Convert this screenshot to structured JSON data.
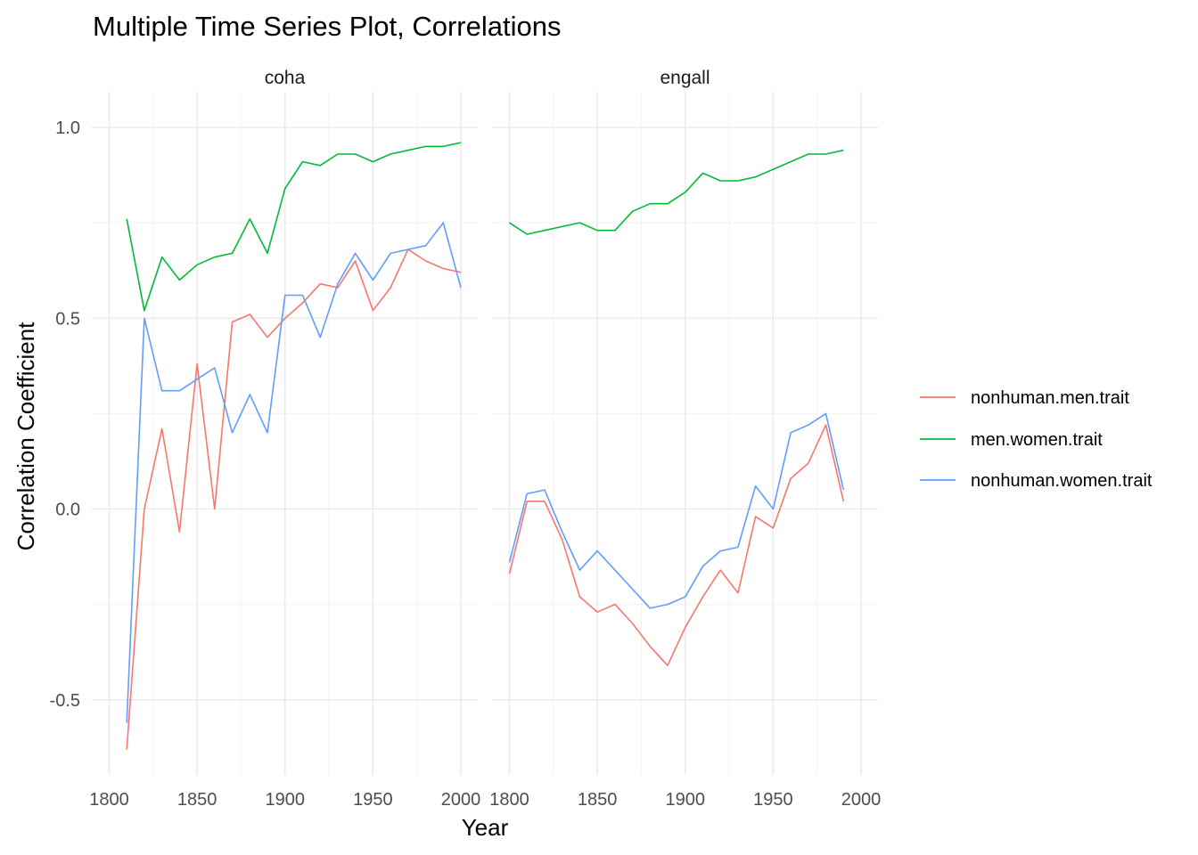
{
  "chart_data": {
    "type": "line",
    "title": "Multiple Time Series Plot, Correlations",
    "xlabel": "Year",
    "ylabel": "Correlation Coefficient",
    "xlim": [
      1790,
      2000
    ],
    "ylim": [
      -0.7,
      1.05
    ],
    "x_ticks": [
      "1800",
      "1850",
      "1900",
      "1950",
      "2000"
    ],
    "y_ticks": [
      "-0.5",
      "0.0",
      "0.5",
      "1.0"
    ],
    "x_tick_values": [
      1800,
      1850,
      1900,
      1950,
      2000
    ],
    "y_tick_values": [
      -0.5,
      0.0,
      0.5,
      1.0
    ],
    "grid": true,
    "legend_position": "right",
    "legend": [
      {
        "name": "nonhuman.men.trait",
        "color": "#F8766D"
      },
      {
        "name": "men.women.trait",
        "color": "#00BA38"
      },
      {
        "name": "nonhuman.women.trait",
        "color": "#619CFF"
      }
    ],
    "panels": [
      {
        "strip": "coha",
        "x": [
          1810,
          1820,
          1830,
          1840,
          1850,
          1860,
          1870,
          1880,
          1890,
          1900,
          1910,
          1920,
          1930,
          1940,
          1950,
          1960,
          1970,
          1980,
          1990,
          2000
        ],
        "series": [
          {
            "name": "nonhuman.men.trait",
            "values": [
              -0.63,
              0.0,
              0.21,
              -0.06,
              0.38,
              0.0,
              0.49,
              0.51,
              0.45,
              0.5,
              0.54,
              0.59,
              0.58,
              0.65,
              0.52,
              0.58,
              0.68,
              0.65,
              0.63,
              0.62
            ]
          },
          {
            "name": "men.women.trait",
            "values": [
              0.76,
              0.52,
              0.66,
              0.6,
              0.64,
              0.66,
              0.67,
              0.76,
              0.67,
              0.84,
              0.91,
              0.9,
              0.93,
              0.93,
              0.91,
              0.93,
              0.94,
              0.95,
              0.95,
              0.96
            ]
          },
          {
            "name": "nonhuman.women.trait",
            "values": [
              -0.56,
              0.5,
              0.31,
              0.31,
              0.34,
              0.37,
              0.2,
              0.3,
              0.2,
              0.56,
              0.56,
              0.45,
              0.59,
              0.67,
              0.6,
              0.67,
              0.68,
              0.69,
              0.75,
              0.58
            ]
          }
        ]
      },
      {
        "strip": "engall",
        "x": [
          1800,
          1810,
          1820,
          1830,
          1840,
          1850,
          1860,
          1870,
          1880,
          1890,
          1900,
          1910,
          1920,
          1930,
          1940,
          1950,
          1960,
          1970,
          1980,
          1990
        ],
        "series": [
          {
            "name": "nonhuman.men.trait",
            "values": [
              -0.17,
              0.02,
              0.02,
              -0.08,
              -0.23,
              -0.27,
              -0.25,
              -0.3,
              -0.36,
              -0.41,
              -0.31,
              -0.23,
              -0.16,
              -0.22,
              -0.02,
              -0.05,
              0.08,
              0.12,
              0.22,
              0.02
            ]
          },
          {
            "name": "men.women.trait",
            "values": [
              0.75,
              0.72,
              0.73,
              0.74,
              0.75,
              0.73,
              0.73,
              0.78,
              0.8,
              0.8,
              0.83,
              0.88,
              0.86,
              0.86,
              0.87,
              0.89,
              0.91,
              0.93,
              0.93,
              0.94
            ]
          },
          {
            "name": "nonhuman.women.trait",
            "values": [
              -0.14,
              0.04,
              0.05,
              -0.06,
              -0.16,
              -0.11,
              -0.16,
              -0.21,
              -0.26,
              -0.25,
              -0.23,
              -0.15,
              -0.11,
              -0.1,
              0.06,
              0.0,
              0.2,
              0.22,
              0.25,
              0.05
            ]
          }
        ]
      }
    ]
  }
}
